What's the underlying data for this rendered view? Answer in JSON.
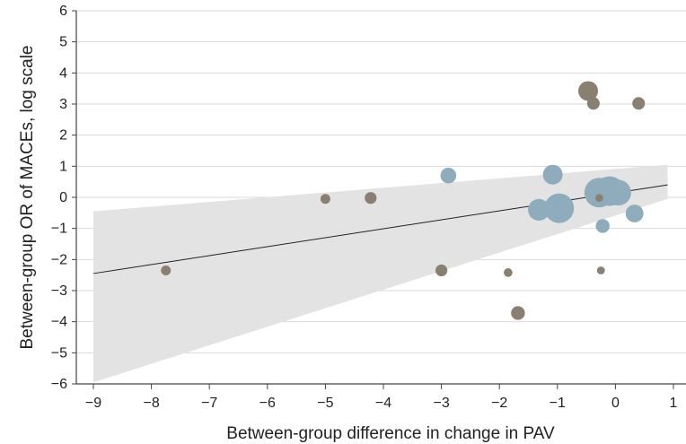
{
  "chart_data": {
    "type": "scatter",
    "title": "",
    "xlabel": "Between-group difference in change in PAV",
    "ylabel": "Between-group OR of MACEs, log scale",
    "xlim": [
      -9,
      1
    ],
    "ylim": [
      -6,
      6
    ],
    "xticks": [
      -9,
      -8,
      -7,
      -6,
      -5,
      -4,
      -3,
      -2,
      -1,
      0,
      1
    ],
    "yticks": [
      -6,
      -5,
      -4,
      -3,
      -2,
      -1,
      0,
      1,
      2,
      3,
      4,
      5,
      6
    ],
    "xtick_labels": [
      "−9",
      "−8",
      "−7",
      "−6",
      "−5",
      "−4",
      "−3",
      "−2",
      "−1",
      "0",
      "1"
    ],
    "ytick_labels": [
      "−6",
      "−5",
      "−4",
      "−3",
      "−2",
      "−1",
      "0",
      "1",
      "2",
      "3",
      "4",
      "5",
      "6"
    ],
    "grid": "horizontal",
    "legend": "none",
    "colors": {
      "blue": "#8eacbb",
      "brown": "#8a8072",
      "band": "#e3e3e3",
      "line": "#222222",
      "grid": "#d9d9d9"
    },
    "regression_line": {
      "x": [
        -9,
        0.9
      ],
      "y": [
        -2.45,
        0.4
      ]
    },
    "confidence_band": {
      "x": [
        -9,
        0.9
      ],
      "upper": [
        -0.45,
        1.05
      ],
      "lower": [
        -5.95,
        -0.05
      ]
    },
    "series": [
      {
        "color": "blue",
        "points": [
          {
            "x": -2.88,
            "y": 0.7,
            "size": 4
          },
          {
            "x": -1.08,
            "y": 0.73,
            "size": 5
          },
          {
            "x": -1.32,
            "y": -0.4,
            "size": 5.5
          },
          {
            "x": -0.97,
            "y": -0.35,
            "size": 7.5
          },
          {
            "x": -0.28,
            "y": 0.15,
            "size": 7.5
          },
          {
            "x": -0.1,
            "y": 0.2,
            "size": 7.5
          },
          {
            "x": 0.05,
            "y": 0.15,
            "size": 6.5
          },
          {
            "x": -0.22,
            "y": -0.92,
            "size": 3.5
          },
          {
            "x": 0.33,
            "y": -0.52,
            "size": 4.5
          }
        ]
      },
      {
        "color": "brown",
        "points": [
          {
            "x": -7.75,
            "y": -2.35,
            "size": 2.5
          },
          {
            "x": -5.0,
            "y": -0.05,
            "size": 2.5
          },
          {
            "x": -4.22,
            "y": -0.02,
            "size": 3
          },
          {
            "x": -3.0,
            "y": -2.35,
            "size": 3
          },
          {
            "x": -1.85,
            "y": -2.42,
            "size": 2.2
          },
          {
            "x": -1.68,
            "y": -3.72,
            "size": 3.5
          },
          {
            "x": -0.47,
            "y": 3.42,
            "size": 5
          },
          {
            "x": -0.38,
            "y": 3.02,
            "size": 3.2
          },
          {
            "x": -0.28,
            "y": -0.02,
            "size": 2
          },
          {
            "x": -0.25,
            "y": -2.35,
            "size": 2
          },
          {
            "x": 0.4,
            "y": 3.02,
            "size": 3.2
          }
        ]
      }
    ]
  }
}
